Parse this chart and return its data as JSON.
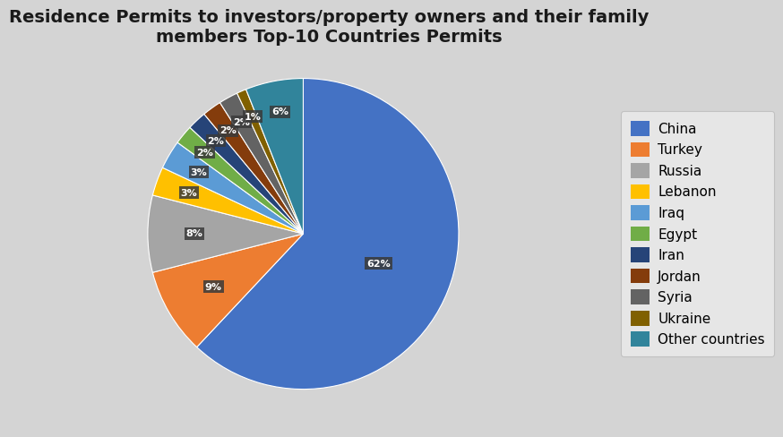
{
  "title": "Residence Permits to investors/property owners and their family\nmembers Top-10 Countries Permits",
  "labels": [
    "China",
    "Turkey",
    "Russia",
    "Lebanon",
    "Iraq",
    "Egypt",
    "Iran",
    "Jordan",
    "Syria",
    "Ukraine",
    "Other countries"
  ],
  "values": [
    62,
    9,
    8,
    3,
    3,
    2,
    2,
    2,
    2,
    1,
    6
  ],
  "colors": [
    "#4472C4",
    "#ED7D31",
    "#A5A5A5",
    "#FFC000",
    "#5B9BD5",
    "#70AD47",
    "#264478",
    "#843C0C",
    "#636363",
    "#806000",
    "#31849B"
  ],
  "pct_labels": [
    "62%",
    "9%",
    "8%",
    "3%",
    "3%",
    "2%",
    "2%",
    "2%",
    "2%",
    "1%",
    "6%"
  ],
  "background_color": "#D4D4D4",
  "legend_bg": "#EBEBEB",
  "title_fontsize": 14,
  "legend_fontsize": 11
}
